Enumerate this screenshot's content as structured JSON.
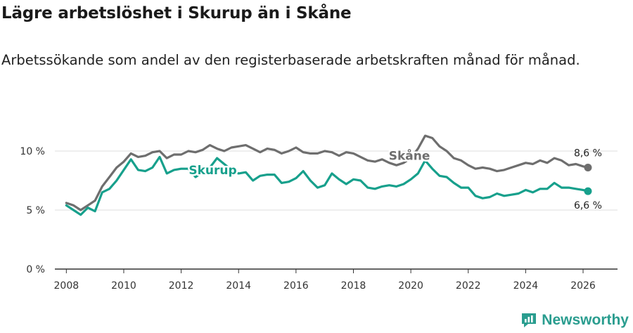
{
  "title": "Lägre arbetslöshet i Skurup än i Skåne",
  "subtitle": "Arbetssökande som andel av den registerbaserade arbetskraften månad för månad.",
  "brand": "Newsworthy",
  "chart_data": {
    "type": "line",
    "xlim": [
      2007.6,
      2027.2
    ],
    "ylim": [
      0,
      12
    ],
    "x_ticks": [
      2008,
      2010,
      2012,
      2014,
      2016,
      2018,
      2020,
      2022,
      2024,
      2026
    ],
    "x_tick_labels": [
      "2008",
      "2010",
      "2012",
      "2014",
      "2016",
      "2018",
      "2020",
      "2022",
      "2024",
      "2026"
    ],
    "y_ticks": [
      0,
      5,
      10
    ],
    "y_tick_labels": [
      "0 %",
      "5 %",
      "10 %"
    ],
    "grid": true,
    "series": [
      {
        "name": "Skåne",
        "color": "#6e6e6e",
        "end_label": "8,6 %",
        "x": [
          2008.0,
          2008.25,
          2008.5,
          2008.75,
          2009.0,
          2009.25,
          2009.5,
          2009.75,
          2010.0,
          2010.25,
          2010.5,
          2010.75,
          2011.0,
          2011.25,
          2011.5,
          2011.75,
          2012.0,
          2012.25,
          2012.5,
          2012.75,
          2013.0,
          2013.25,
          2013.5,
          2013.75,
          2014.0,
          2014.25,
          2014.5,
          2014.75,
          2015.0,
          2015.25,
          2015.5,
          2015.75,
          2016.0,
          2016.25,
          2016.5,
          2016.75,
          2017.0,
          2017.25,
          2017.5,
          2017.75,
          2018.0,
          2018.25,
          2018.5,
          2018.75,
          2019.0,
          2019.25,
          2019.5,
          2019.75,
          2020.0,
          2020.25,
          2020.5,
          2020.75,
          2021.0,
          2021.25,
          2021.5,
          2021.75,
          2022.0,
          2022.25,
          2022.5,
          2022.75,
          2023.0,
          2023.25,
          2023.5,
          2023.75,
          2024.0,
          2024.25,
          2024.5,
          2024.75,
          2025.0,
          2025.25,
          2025.5,
          2025.75,
          2026.0,
          2026.17
        ],
        "values": [
          5.6,
          5.4,
          5.0,
          5.4,
          5.8,
          7.0,
          7.8,
          8.6,
          9.1,
          9.8,
          9.5,
          9.6,
          9.9,
          10.0,
          9.4,
          9.7,
          9.7,
          10.0,
          9.9,
          10.1,
          10.5,
          10.2,
          10.0,
          10.3,
          10.4,
          10.5,
          10.2,
          9.9,
          10.2,
          10.1,
          9.8,
          10.0,
          10.3,
          9.9,
          9.8,
          9.8,
          10.0,
          9.9,
          9.6,
          9.9,
          9.8,
          9.5,
          9.2,
          9.1,
          9.3,
          9.0,
          8.8,
          9.0,
          9.4,
          10.2,
          11.3,
          11.1,
          10.4,
          10.0,
          9.4,
          9.2,
          8.8,
          8.5,
          8.6,
          8.5,
          8.3,
          8.4,
          8.6,
          8.8,
          9.0,
          8.9,
          9.2,
          9.0,
          9.4,
          9.2,
          8.8,
          8.9,
          8.7,
          8.6
        ]
      },
      {
        "name": "Skurup",
        "color": "#17a08c",
        "end_label": "6,6 %",
        "x": [
          2008.0,
          2008.25,
          2008.5,
          2008.75,
          2009.0,
          2009.25,
          2009.5,
          2009.75,
          2010.0,
          2010.25,
          2010.5,
          2010.75,
          2011.0,
          2011.25,
          2011.5,
          2011.75,
          2012.0,
          2012.25,
          2012.5,
          2012.75,
          2013.0,
          2013.25,
          2013.5,
          2013.75,
          2014.0,
          2014.25,
          2014.5,
          2014.75,
          2015.0,
          2015.25,
          2015.5,
          2015.75,
          2016.0,
          2016.25,
          2016.5,
          2016.75,
          2017.0,
          2017.25,
          2017.5,
          2017.75,
          2018.0,
          2018.25,
          2018.5,
          2018.75,
          2019.0,
          2019.25,
          2019.5,
          2019.75,
          2020.0,
          2020.25,
          2020.5,
          2020.75,
          2021.0,
          2021.25,
          2021.5,
          2021.75,
          2022.0,
          2022.25,
          2022.5,
          2022.75,
          2023.0,
          2023.25,
          2023.5,
          2023.75,
          2024.0,
          2024.25,
          2024.5,
          2024.75,
          2025.0,
          2025.25,
          2025.5,
          2025.75,
          2026.0,
          2026.17
        ],
        "values": [
          5.4,
          5.0,
          4.6,
          5.2,
          4.9,
          6.5,
          6.8,
          7.5,
          8.4,
          9.3,
          8.4,
          8.3,
          8.6,
          9.5,
          8.1,
          8.4,
          8.5,
          8.5,
          7.8,
          8.2,
          8.6,
          9.4,
          8.9,
          8.4,
          8.1,
          8.2,
          7.5,
          7.9,
          8.0,
          8.0,
          7.3,
          7.4,
          7.7,
          8.3,
          7.5,
          6.9,
          7.1,
          8.1,
          7.6,
          7.2,
          7.6,
          7.5,
          6.9,
          6.8,
          7.0,
          7.1,
          7.0,
          7.2,
          7.6,
          8.1,
          9.2,
          8.5,
          7.9,
          7.8,
          7.3,
          6.9,
          6.9,
          6.2,
          6.0,
          6.1,
          6.4,
          6.2,
          6.3,
          6.4,
          6.7,
          6.5,
          6.8,
          6.8,
          7.3,
          6.9,
          6.9,
          6.8,
          6.7,
          6.6
        ]
      }
    ]
  }
}
